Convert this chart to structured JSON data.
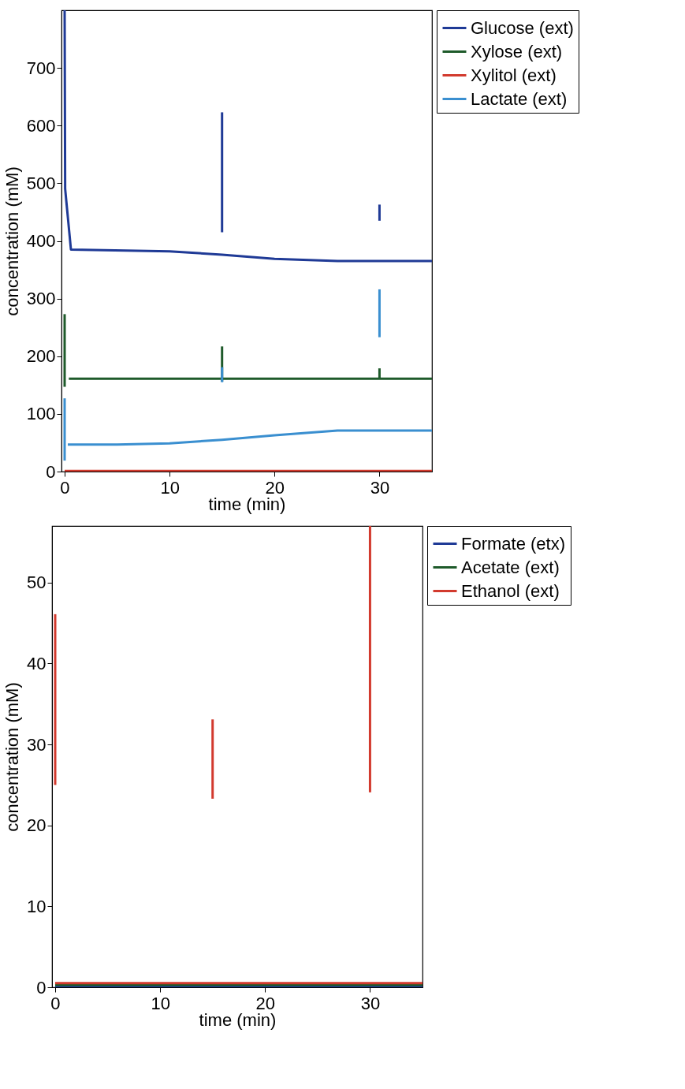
{
  "chart_data": [
    {
      "type": "line",
      "xlabel": "time (min)",
      "ylabel": "concentration (mM)",
      "xlim": [
        -0.3,
        35
      ],
      "ylim": [
        0,
        800
      ],
      "xticks": [
        0,
        10,
        20,
        30
      ],
      "yticks": [
        0,
        100,
        200,
        300,
        400,
        500,
        600,
        700
      ],
      "legend": "right",
      "grid": false,
      "series": [
        {
          "name": "Glucose (ext)",
          "color": "#1f3a96",
          "x": [
            0,
            0.05,
            0.6,
            10,
            15,
            20,
            26,
            35
          ],
          "values": [
            800,
            490,
            385,
            382,
            376,
            369,
            365,
            365
          ]
        },
        {
          "name": "Xylose (ext)",
          "color": "#1e5a2a",
          "x": [
            0.4,
            35
          ],
          "values": [
            161,
            161
          ]
        },
        {
          "name": "Xylitol (ext)",
          "color": "#d23a2e",
          "x": [
            0,
            35
          ],
          "values": [
            1,
            1
          ]
        },
        {
          "name": "Lactate (ext)",
          "color": "#3a8fd0",
          "x": [
            0.3,
            5,
            10,
            15,
            20,
            26,
            35
          ],
          "values": [
            47,
            47,
            49,
            55,
            63,
            71,
            71
          ]
        },
        {
          "type": "bar",
          "color": "#1f3a96",
          "x": [
            15,
            30
          ],
          "base": [
            415,
            435
          ],
          "values": [
            208,
            28
          ]
        },
        {
          "type": "bar",
          "color": "#1e5a2a",
          "x": [
            0,
            15,
            30
          ],
          "base": [
            147,
            156,
            161
          ],
          "values": [
            126,
            61,
            18
          ]
        },
        {
          "type": "bar",
          "color": "#3a8fd0",
          "x": [
            0,
            15,
            30
          ],
          "base": [
            19,
            155,
            233
          ],
          "values": [
            108,
            26,
            83
          ]
        }
      ]
    },
    {
      "type": "line",
      "xlabel": "time (min)",
      "ylabel": "concentration (mM)",
      "xlim": [
        -0.3,
        35
      ],
      "ylim": [
        0,
        57
      ],
      "xticks": [
        0,
        10,
        20,
        30
      ],
      "yticks": [
        0,
        10,
        20,
        30,
        40,
        50
      ],
      "legend": "right",
      "grid": false,
      "series": [
        {
          "name": "Formate (etx)",
          "color": "#1f3a96",
          "x": [
            0,
            35
          ],
          "values": [
            0.1,
            0.1
          ]
        },
        {
          "name": "Acetate (ext)",
          "color": "#1e5a2a",
          "x": [
            0,
            35
          ],
          "values": [
            0.3,
            0.3
          ]
        },
        {
          "name": "Ethanol (ext)",
          "color": "#d23a2e",
          "x": [
            0,
            35
          ],
          "values": [
            0.5,
            0.5
          ]
        },
        {
          "type": "bar",
          "color": "#d23a2e",
          "x": [
            0,
            15,
            30
          ],
          "base": [
            25,
            23.3,
            24.1
          ],
          "values": [
            21.1,
            9.8,
            32.9
          ]
        }
      ]
    }
  ]
}
